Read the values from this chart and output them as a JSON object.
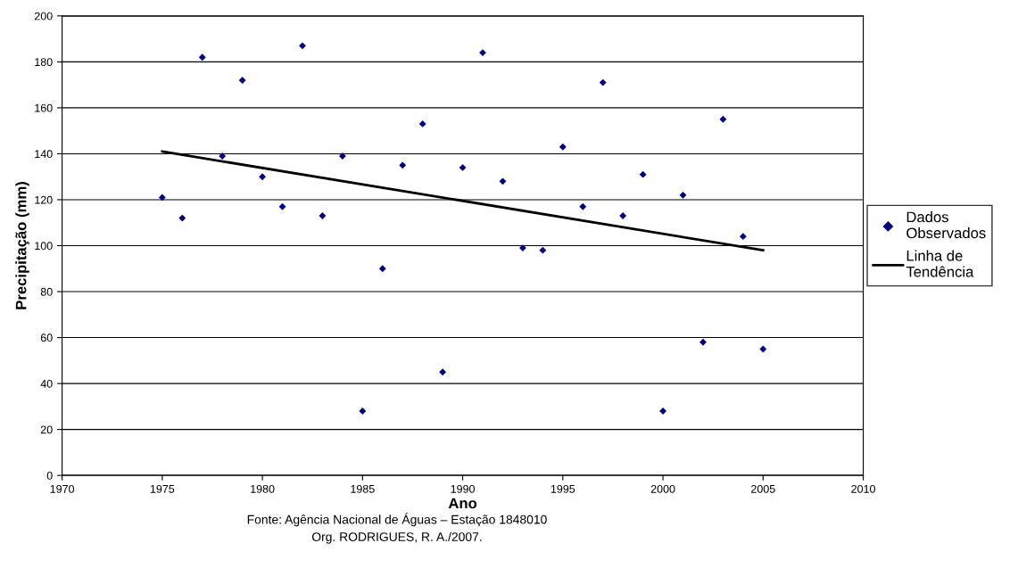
{
  "chart_data": {
    "type": "scatter",
    "xlabel": "Ano",
    "ylabel": "Precipitação (mm)",
    "x": [
      1975,
      1976,
      1977,
      1978,
      1979,
      1980,
      1981,
      1982,
      1983,
      1984,
      1985,
      1986,
      1987,
      1988,
      1989,
      1990,
      1991,
      1992,
      1993,
      1994,
      1995,
      1996,
      1997,
      1998,
      1999,
      2000,
      2001,
      2002,
      2003,
      2004,
      2005
    ],
    "series": [
      {
        "name": "Dados Observados",
        "color": "#000080",
        "marker": "diamond",
        "values": [
          121,
          112,
          182,
          139,
          172,
          130,
          117,
          187,
          113,
          139,
          28,
          90,
          135,
          153,
          45,
          134,
          184,
          128,
          99,
          98,
          143,
          117,
          171,
          113,
          131,
          28,
          122,
          58,
          155,
          104,
          55
        ]
      },
      {
        "name": "Linha de Tendência",
        "type": "line",
        "color": "#000000",
        "line_style": "solid",
        "x": [
          1975,
          2005
        ],
        "values": [
          141,
          98
        ]
      }
    ],
    "xlim": [
      1970,
      2010
    ],
    "xticks": [
      1970,
      1975,
      1980,
      1985,
      1990,
      1995,
      2000,
      2005,
      2010
    ],
    "ylim": [
      0,
      200
    ],
    "yticks": [
      0,
      20,
      40,
      60,
      80,
      100,
      120,
      140,
      160,
      180,
      200
    ],
    "grid": "y",
    "legend": "right",
    "annotations": [
      "Fonte: Agência Nacional de Águas – Estação 1848010",
      "Org. RODRIGUES, R. A./2007."
    ]
  }
}
